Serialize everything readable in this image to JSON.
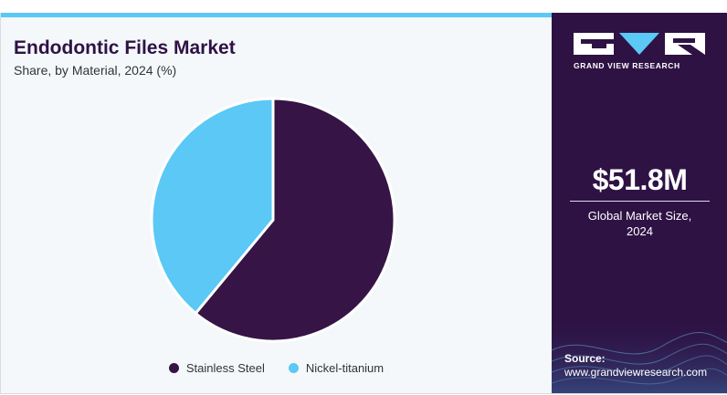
{
  "brand": {
    "name": "GRAND VIEW RESEARCH",
    "accent_color": "#5bc8f5",
    "panel_color": "#2e1244"
  },
  "header": {
    "title": "Endodontic Files Market",
    "subtitle": "Share, by Material, 2024 (%)"
  },
  "chart_data": {
    "type": "pie",
    "title": "Endodontic Files Market",
    "subtitle": "Share, by Material, 2024 (%)",
    "categories": [
      "Stainless Steel",
      "Nickel-titanium"
    ],
    "values": [
      61,
      39
    ],
    "colors": [
      "#361445",
      "#5bc8f5"
    ],
    "legend_position": "bottom"
  },
  "legend": {
    "items": [
      {
        "label": "Stainless Steel",
        "color": "#361445"
      },
      {
        "label": "Nickel-titanium",
        "color": "#5bc8f5"
      }
    ]
  },
  "side_panel": {
    "market_size_value": "$51.8M",
    "market_size_label_line1": "Global Market Size,",
    "market_size_label_line2": "2024",
    "source_label": "Source:",
    "source_url": "www.grandviewresearch.com"
  }
}
